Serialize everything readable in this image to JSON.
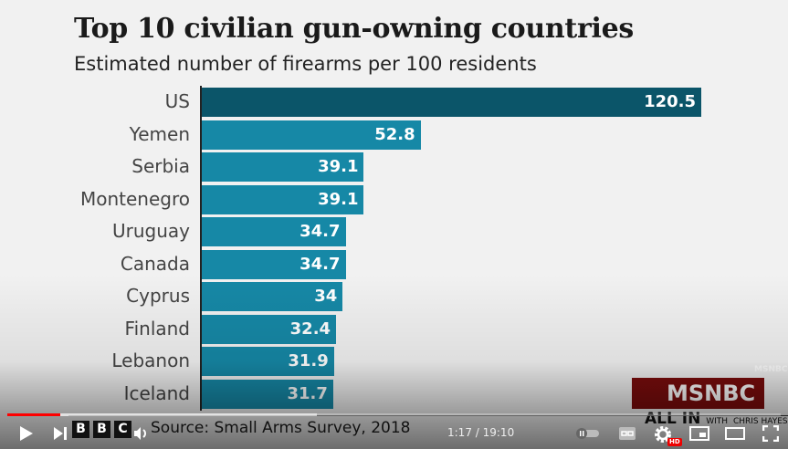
{
  "chart_data": {
    "type": "bar",
    "orientation": "horizontal",
    "title": "Top 10 civilian gun-owning countries",
    "subtitle": "Estimated number of firearms per 100 residents",
    "categories": [
      "US",
      "Yemen",
      "Serbia",
      "Montenegro",
      "Uruguay",
      "Canada",
      "Cyprus",
      "Finland",
      "Lebanon",
      "Iceland"
    ],
    "values": [
      120.5,
      52.8,
      39.1,
      39.1,
      34.7,
      34.7,
      34,
      32.4,
      31.9,
      31.7
    ],
    "value_labels": [
      "120.5",
      "52.8",
      "39.1",
      "39.1",
      "34.7",
      "34.7",
      "34",
      "32.4",
      "31.9",
      "31.7"
    ],
    "xlim": [
      0,
      120.5
    ],
    "grid": false,
    "colors": {
      "highlight": "#0b5569",
      "bars": "#1688a6"
    },
    "source": "Source: Small Arms Survey, 2018"
  },
  "branding": {
    "bbc": [
      "B",
      "B",
      "C"
    ],
    "network": "MSNBC",
    "show": "ALL IN",
    "show_with": "WITH",
    "host": "CHRIS HAYES"
  },
  "player": {
    "time": "1:17 / 19:10",
    "played_fraction": 0.068,
    "buffered_fraction": 0.4,
    "hd_badge": "HD",
    "icons": [
      "play-icon",
      "next-icon",
      "volume-icon",
      "autoplay-toggle-icon",
      "captions-icon",
      "settings-icon",
      "miniplayer-icon",
      "theater-icon",
      "fullscreen-icon"
    ]
  }
}
